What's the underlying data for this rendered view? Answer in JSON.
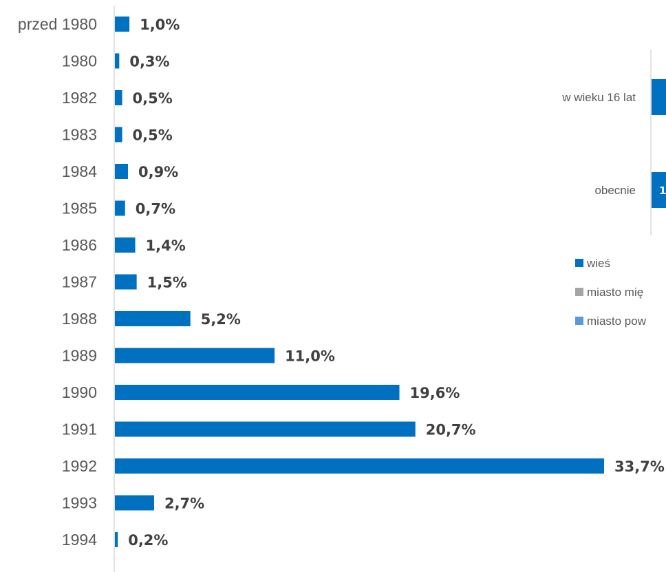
{
  "chart_data": [
    {
      "type": "bar",
      "orientation": "horizontal",
      "categories": [
        "przed 1980",
        "1980",
        "1982",
        "1983",
        "1984",
        "1985",
        "1986",
        "1987",
        "1988",
        "1989",
        "1990",
        "1991",
        "1992",
        "1993",
        "1994"
      ],
      "values": [
        1.0,
        0.3,
        0.5,
        0.5,
        0.9,
        0.7,
        1.4,
        1.5,
        5.2,
        11.0,
        19.6,
        20.7,
        33.7,
        2.7,
        0.2
      ],
      "value_labels": [
        "1,0%",
        "0,3%",
        "0,5%",
        "0,5%",
        "0,9%",
        "0,7%",
        "1,4%",
        "1,5%",
        "5,2%",
        "11,0%",
        "19,6%",
        "20,7%",
        "33,7%",
        "2,7%",
        "0,2%"
      ],
      "color": "#0070C0",
      "grid": false,
      "xlim": [
        0,
        33.7
      ]
    },
    {
      "type": "bar",
      "orientation": "horizontal",
      "stacked": true,
      "partially_visible": true,
      "categories": [
        "w wieku 16 lat",
        "obecnie"
      ],
      "visible_value_labels": [
        "",
        "1"
      ],
      "legend": {
        "placement": "bottom-right",
        "entries": [
          {
            "label": "wieś",
            "color": "#0070C0"
          },
          {
            "label": "miasto mię",
            "color": "#A5A5A5"
          },
          {
            "label": "miasto pow",
            "color": "#5B9BD5"
          }
        ]
      }
    }
  ]
}
